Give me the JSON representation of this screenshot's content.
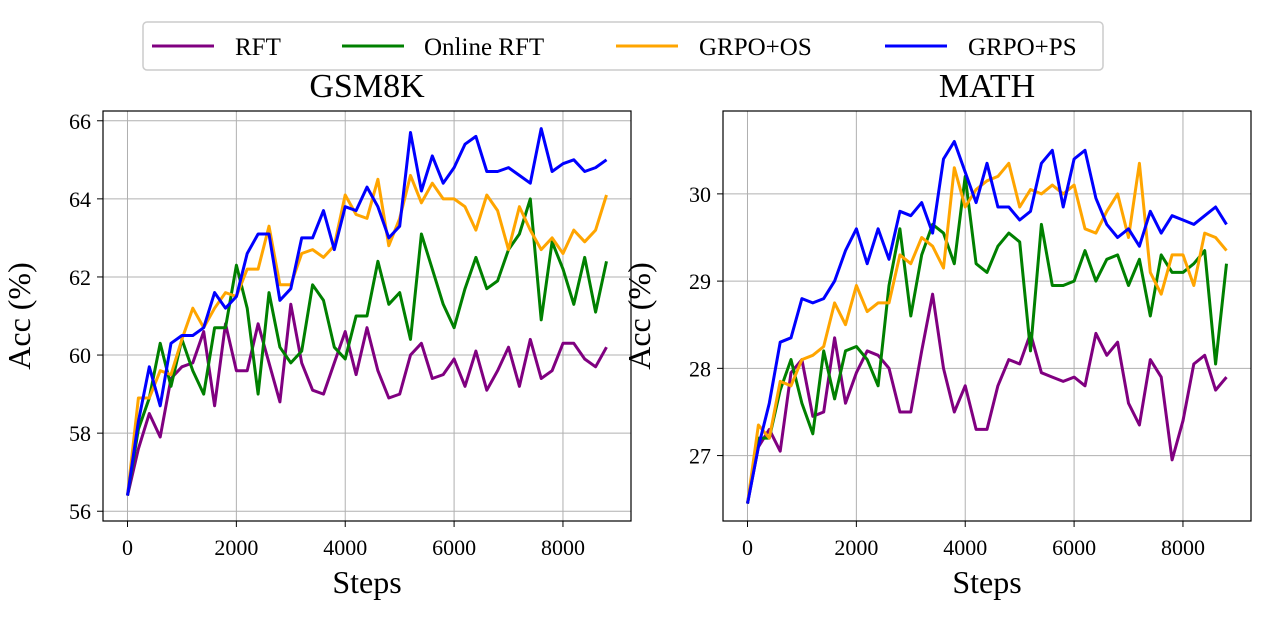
{
  "legend": {
    "entries": [
      {
        "name": "RFT",
        "color": "#800080"
      },
      {
        "name": "Online RFT",
        "color": "#008000"
      },
      {
        "name": "GRPO+OS",
        "color": "#FFA500"
      },
      {
        "name": "GRPO+PS",
        "color": "#0000FF"
      }
    ]
  },
  "chart_data": [
    {
      "type": "line",
      "title": "GSM8K",
      "xlabel": "Steps",
      "ylabel": "Acc (%)",
      "xlim": [
        -450,
        9250
      ],
      "ylim": [
        55.75,
        66.25
      ],
      "xticks": [
        0,
        2000,
        4000,
        6000,
        8000
      ],
      "yticks": [
        56,
        58,
        60,
        62,
        64,
        66
      ],
      "grid": true,
      "x": [
        0,
        200,
        400,
        600,
        800,
        1000,
        1200,
        1400,
        1600,
        1800,
        2000,
        2200,
        2400,
        2600,
        2800,
        3000,
        3200,
        3400,
        3600,
        3800,
        4000,
        4200,
        4400,
        4600,
        4800,
        5000,
        5200,
        5400,
        5600,
        5800,
        6000,
        6200,
        6400,
        6600,
        6800,
        7000,
        7200,
        7400,
        7600,
        7800,
        8000,
        8200,
        8400,
        8600,
        8800
      ],
      "series": [
        {
          "name": "RFT",
          "values": [
            56.4,
            57.6,
            58.5,
            57.9,
            59.4,
            59.7,
            59.8,
            60.6,
            58.7,
            60.8,
            59.6,
            59.6,
            60.8,
            59.8,
            58.8,
            61.3,
            59.8,
            59.1,
            59.0,
            59.8,
            60.6,
            59.5,
            60.7,
            59.6,
            58.9,
            59.0,
            60.0,
            60.3,
            59.4,
            59.5,
            59.9,
            59.2,
            60.1,
            59.1,
            59.6,
            60.2,
            59.2,
            60.4,
            59.4,
            59.6,
            60.3,
            60.3,
            59.9,
            59.7,
            60.2
          ]
        },
        {
          "name": "Online RFT",
          "values": [
            56.4,
            58.1,
            58.9,
            60.3,
            59.2,
            60.4,
            59.6,
            59.0,
            60.7,
            60.7,
            62.3,
            61.2,
            59.0,
            61.6,
            60.2,
            59.8,
            60.1,
            61.8,
            61.4,
            60.2,
            59.9,
            61.0,
            61.0,
            62.4,
            61.3,
            61.6,
            60.4,
            63.1,
            62.2,
            61.3,
            60.7,
            61.7,
            62.5,
            61.7,
            61.9,
            62.7,
            63.1,
            64.0,
            60.9,
            62.9,
            62.2,
            61.3,
            62.5,
            61.1,
            62.4
          ]
        },
        {
          "name": "GRPO+OS",
          "values": [
            56.4,
            58.9,
            58.9,
            59.6,
            59.5,
            60.4,
            61.2,
            60.7,
            61.2,
            61.6,
            61.5,
            62.2,
            62.2,
            63.3,
            61.8,
            61.8,
            62.6,
            62.7,
            62.5,
            62.8,
            64.1,
            63.6,
            63.5,
            64.5,
            62.8,
            63.5,
            64.6,
            63.9,
            64.4,
            64.0,
            64.0,
            63.8,
            63.2,
            64.1,
            63.7,
            62.7,
            63.8,
            63.2,
            62.7,
            63.0,
            62.6,
            63.2,
            62.9,
            63.2,
            64.1
          ]
        },
        {
          "name": "GRPO+PS",
          "values": [
            56.4,
            58.3,
            59.7,
            58.7,
            60.3,
            60.5,
            60.5,
            60.7,
            61.6,
            61.2,
            61.5,
            62.6,
            63.1,
            63.1,
            61.4,
            61.7,
            63.0,
            63.0,
            63.7,
            62.7,
            63.8,
            63.7,
            64.3,
            63.8,
            63.0,
            63.3,
            65.7,
            64.2,
            65.1,
            64.4,
            64.8,
            65.4,
            65.6,
            64.7,
            64.7,
            64.8,
            64.6,
            64.4,
            65.8,
            64.7,
            64.9,
            65.0,
            64.7,
            64.8,
            65.0
          ]
        }
      ]
    },
    {
      "type": "line",
      "title": "MATH",
      "xlabel": "Steps",
      "ylabel": "Acc (%)",
      "xlim": [
        -450,
        9250
      ],
      "ylim": [
        26.25,
        30.95
      ],
      "xticks": [
        0,
        2000,
        4000,
        6000,
        8000
      ],
      "yticks": [
        27,
        28,
        29,
        30
      ],
      "grid": true,
      "x": [
        0,
        200,
        400,
        600,
        800,
        1000,
        1200,
        1400,
        1600,
        1800,
        2000,
        2200,
        2400,
        2600,
        2800,
        3000,
        3200,
        3400,
        3600,
        3800,
        4000,
        4200,
        4400,
        4600,
        4800,
        5000,
        5200,
        5400,
        5600,
        5800,
        6000,
        6200,
        6400,
        6600,
        6800,
        7000,
        7200,
        7400,
        7600,
        7800,
        8000,
        8200,
        8400,
        8600,
        8800
      ],
      "series": [
        {
          "name": "RFT",
          "values": [
            26.45,
            27.1,
            27.3,
            27.05,
            27.95,
            28.1,
            27.45,
            27.5,
            28.35,
            27.6,
            27.95,
            28.2,
            28.15,
            28.0,
            27.5,
            27.5,
            28.2,
            28.85,
            28.0,
            27.5,
            27.8,
            27.3,
            27.3,
            27.8,
            28.1,
            28.05,
            28.4,
            27.95,
            27.9,
            27.85,
            27.9,
            27.8,
            28.4,
            28.15,
            28.3,
            27.6,
            27.35,
            28.1,
            27.9,
            26.95,
            27.4,
            28.05,
            28.15,
            27.75,
            27.9
          ]
        },
        {
          "name": "Online RFT",
          "values": [
            26.45,
            27.2,
            27.2,
            27.75,
            28.1,
            27.6,
            27.25,
            28.2,
            27.65,
            28.2,
            28.25,
            28.1,
            27.8,
            28.95,
            29.6,
            28.6,
            29.3,
            29.65,
            29.55,
            29.2,
            30.2,
            29.2,
            29.1,
            29.4,
            29.55,
            29.45,
            28.2,
            29.65,
            28.95,
            28.95,
            29.0,
            29.35,
            29.0,
            29.25,
            29.3,
            28.95,
            29.25,
            28.6,
            29.3,
            29.1,
            29.1,
            29.2,
            29.35,
            28.05,
            29.2
          ]
        },
        {
          "name": "GRPO+OS",
          "values": [
            26.45,
            27.35,
            27.2,
            27.85,
            27.8,
            28.1,
            28.15,
            28.25,
            28.75,
            28.5,
            28.95,
            28.65,
            28.75,
            28.75,
            29.3,
            29.2,
            29.5,
            29.4,
            29.15,
            30.3,
            29.85,
            30.05,
            30.15,
            30.2,
            30.35,
            29.85,
            30.05,
            30.0,
            30.1,
            30.0,
            30.1,
            29.6,
            29.55,
            29.8,
            30.0,
            29.5,
            30.35,
            29.1,
            28.85,
            29.3,
            29.3,
            28.95,
            29.55,
            29.5,
            29.35
          ]
        },
        {
          "name": "GRPO+PS",
          "values": [
            26.45,
            27.1,
            27.6,
            28.3,
            28.35,
            28.8,
            28.75,
            28.8,
            29.0,
            29.35,
            29.6,
            29.2,
            29.6,
            29.25,
            29.8,
            29.75,
            29.9,
            29.55,
            30.4,
            30.6,
            30.25,
            29.9,
            30.35,
            29.85,
            29.85,
            29.7,
            29.8,
            30.35,
            30.5,
            29.85,
            30.4,
            30.5,
            29.95,
            29.65,
            29.5,
            29.6,
            29.4,
            29.8,
            29.55,
            29.75,
            29.7,
            29.65,
            29.75,
            29.85,
            29.65
          ]
        }
      ]
    }
  ]
}
